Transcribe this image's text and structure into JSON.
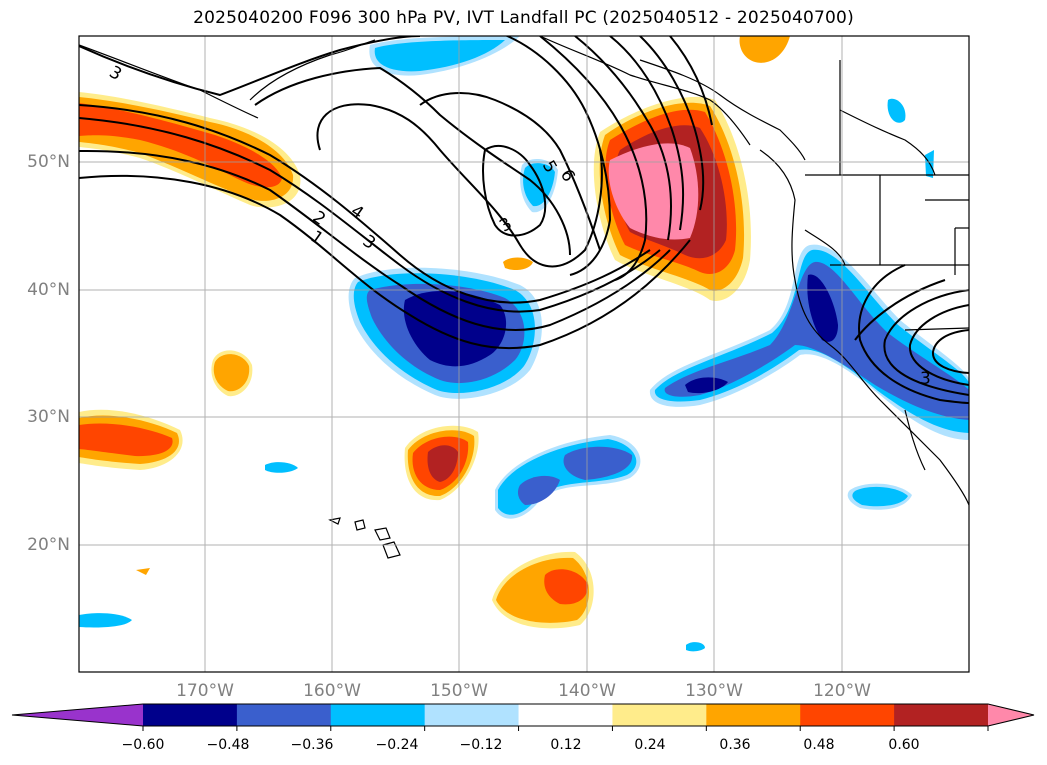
{
  "title": "2025040200 F096 300 hPa PV, IVT Landfall PC (2025040512 - 2025040700)",
  "lon_labels": [
    "170°W",
    "160°W",
    "150°W",
    "140°W",
    "130°W",
    "120°W"
  ],
  "lat_labels": [
    "50°N",
    "40°N",
    "30°N",
    "20°N"
  ],
  "colorbar": {
    "colors": [
      "#9933cc",
      "#00008b",
      "#3a5fcd",
      "#00bfff",
      "#b0e2ff",
      "#ffffff",
      "#ffec8b",
      "#ffa500",
      "#ff4500",
      "#b22222",
      "#ff88aa"
    ],
    "ticks": [
      "−0.60",
      "−0.48",
      "−0.36",
      "−0.24",
      "−0.12",
      "0.12",
      "0.24",
      "0.36",
      "0.48",
      "0.60"
    ]
  },
  "pv_contour_labels": [
    "1",
    "2",
    "3",
    "4",
    "5",
    "6",
    "3",
    "3",
    "3"
  ]
}
